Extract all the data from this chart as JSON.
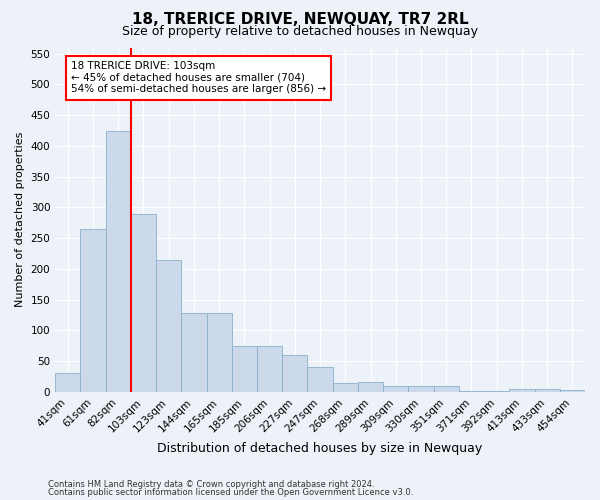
{
  "title": "18, TRERICE DRIVE, NEWQUAY, TR7 2RL",
  "subtitle": "Size of property relative to detached houses in Newquay",
  "xlabel": "Distribution of detached houses by size in Newquay",
  "ylabel": "Number of detached properties",
  "categories": [
    "41sqm",
    "61sqm",
    "82sqm",
    "103sqm",
    "123sqm",
    "144sqm",
    "165sqm",
    "185sqm",
    "206sqm",
    "227sqm",
    "247sqm",
    "268sqm",
    "289sqm",
    "309sqm",
    "330sqm",
    "351sqm",
    "371sqm",
    "392sqm",
    "413sqm",
    "433sqm",
    "454sqm"
  ],
  "values": [
    30,
    265,
    425,
    290,
    215,
    128,
    128,
    75,
    75,
    60,
    40,
    14,
    16,
    10,
    10,
    9,
    2,
    2,
    5,
    5,
    3
  ],
  "bar_color": "#ccd9ea",
  "bar_edgecolor": "#8ab0cc",
  "vline_x": 2.5,
  "vline_color": "red",
  "annotation_text": "18 TRERICE DRIVE: 103sqm\n← 45% of detached houses are smaller (704)\n54% of semi-detached houses are larger (856) →",
  "annotation_box_color": "white",
  "annotation_box_edgecolor": "red",
  "ylim": [
    0,
    560
  ],
  "yticks": [
    0,
    50,
    100,
    150,
    200,
    250,
    300,
    350,
    400,
    450,
    500,
    550
  ],
  "footer1": "Contains HM Land Registry data © Crown copyright and database right 2024.",
  "footer2": "Contains public sector information licensed under the Open Government Licence v3.0.",
  "background_color": "#edf1f8",
  "grid_color": "#ffffff",
  "title_fontsize": 11,
  "subtitle_fontsize": 9,
  "tick_fontsize": 7.5,
  "ylabel_fontsize": 8,
  "xlabel_fontsize": 9
}
